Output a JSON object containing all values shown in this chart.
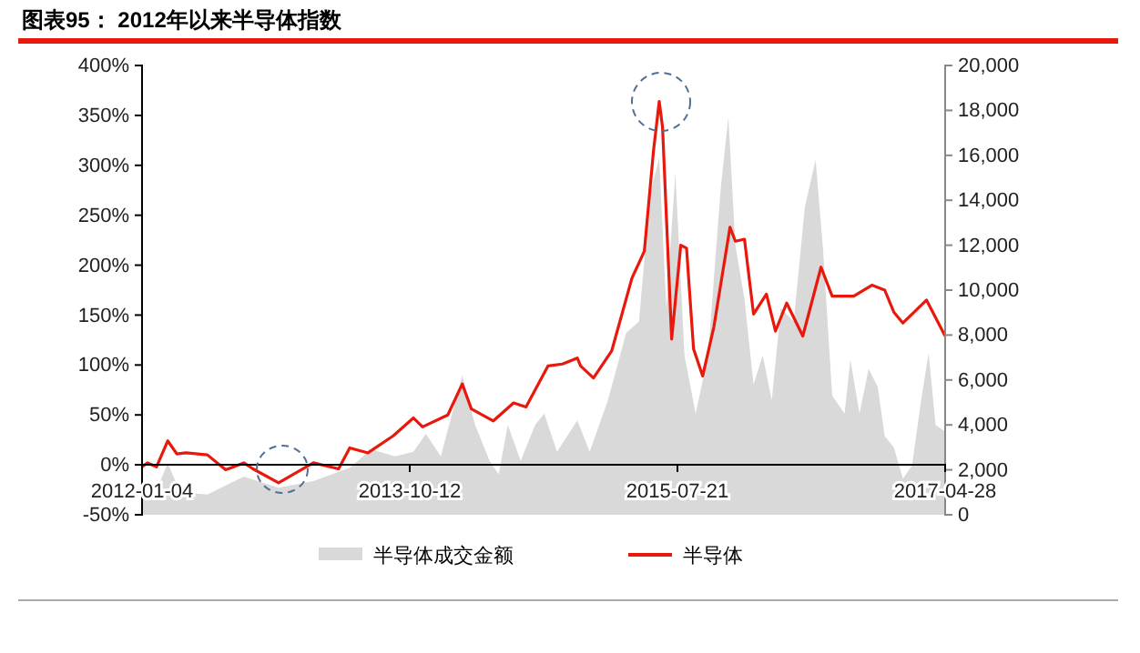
{
  "chart_data": {
    "type": "line",
    "title": "图表95：  2012年以来半导体指数",
    "xlim": [
      "2012-01-04",
      "2017-04-28"
    ],
    "xticks": [
      "2012-01-04",
      "2013-10-12",
      "2015-07-21",
      "2017-04-28"
    ],
    "ylim": [
      -50,
      400
    ],
    "yticks": [
      {
        "value": -50,
        "label": "-50%"
      },
      {
        "value": 0,
        "label": "0%"
      },
      {
        "value": 50,
        "label": "50%"
      },
      {
        "value": 100,
        "label": "100%"
      },
      {
        "value": 150,
        "label": "150%"
      },
      {
        "value": 200,
        "label": "200%"
      },
      {
        "value": 250,
        "label": "250%"
      },
      {
        "value": 300,
        "label": "300%"
      },
      {
        "value": 350,
        "label": "350%"
      },
      {
        "value": 400,
        "label": "400%"
      }
    ],
    "y2lim": [
      0,
      20000
    ],
    "y2ticks": [
      0,
      {
        "value": 2000,
        "label": "2,000"
      },
      {
        "value": 4000,
        "label": "4,000"
      },
      {
        "value": 6000,
        "label": "6,000"
      },
      {
        "value": 8000,
        "label": "8,000"
      },
      {
        "value": 10000,
        "label": "10,000"
      },
      {
        "value": 12000,
        "label": "12,000"
      },
      {
        "value": 14000,
        "label": "14,000"
      },
      {
        "value": 16000,
        "label": "16,000"
      },
      {
        "value": 18000,
        "label": "18,000"
      },
      {
        "value": 20000,
        "label": "20,000"
      }
    ],
    "legend": "bottom",
    "grid": false,
    "marker": "none",
    "series": [
      {
        "name": "半导体成交金额",
        "type": "area",
        "axis": "y2",
        "color": "#d9d9d9",
        "x": [
          "2012-01-04",
          "2012-02-04",
          "2012-03-06",
          "2012-04-05",
          "2012-06-10",
          "2012-09-06",
          "2012-11-29",
          "2013-02-21",
          "2013-05-20",
          "2013-07-11",
          "2013-09-07",
          "2013-10-21",
          "2013-11-20",
          "2013-12-26",
          "2014-02-16",
          "2014-03-19",
          "2014-04-23",
          "2014-05-15",
          "2014-06-06",
          "2014-07-07",
          "2014-08-11",
          "2014-09-02",
          "2014-10-03",
          "2014-11-21",
          "2014-12-21",
          "2015-02-03",
          "2015-03-19",
          "2015-04-19",
          "2015-05-16",
          "2015-06-07",
          "2015-06-24",
          "2015-07-16",
          "2015-08-07",
          "2015-09-03",
          "2015-10-03",
          "2015-11-03",
          "2015-11-21",
          "2015-12-08",
          "2015-12-30",
          "2016-01-21",
          "2016-02-12",
          "2016-03-05",
          "2016-03-27",
          "2016-04-27",
          "2016-05-24",
          "2016-06-19",
          "2016-07-07",
          "2016-07-29",
          "2016-08-28",
          "2016-09-11",
          "2016-10-03",
          "2016-10-25",
          "2016-11-16",
          "2016-12-03",
          "2016-12-25",
          "2017-01-16",
          "2017-02-07",
          "2017-03-01",
          "2017-03-19",
          "2017-04-05",
          "2017-04-28"
        ],
        "values": [
          800,
          900,
          2300,
          1000,
          900,
          1700,
          1200,
          1500,
          2100,
          2900,
          2600,
          2800,
          3600,
          2600,
          6200,
          4000,
          2400,
          1800,
          4000,
          2400,
          4000,
          4500,
          2800,
          4200,
          2800,
          5100,
          8100,
          8600,
          14300,
          15900,
          9200,
          15200,
          7100,
          4500,
          7100,
          14600,
          17700,
          12000,
          9600,
          5800,
          7100,
          5100,
          9200,
          8600,
          13700,
          15800,
          11800,
          5300,
          4500,
          6900,
          4500,
          6500,
          5700,
          3500,
          3000,
          1600,
          2200,
          5100,
          7200,
          4000,
          3700
        ]
      },
      {
        "name": "半导体",
        "color": "#e8180c",
        "line_style": "solid",
        "x": [
          "2012-01-04",
          "2012-01-17",
          "2012-02-08",
          "2012-03-06",
          "2012-03-28",
          "2012-04-19",
          "2012-06-10",
          "2012-07-24",
          "2012-09-06",
          "2012-09-28",
          "2012-11-29",
          "2013-02-21",
          "2013-04-23",
          "2013-05-20",
          "2013-07-03",
          "2013-09-02",
          "2013-10-21",
          "2013-11-12",
          "2014-01-12",
          "2014-02-16",
          "2014-03-10",
          "2014-05-02",
          "2014-06-20",
          "2014-07-20",
          "2014-09-11",
          "2014-10-16",
          "2014-11-21",
          "2014-11-29",
          "2014-12-30",
          "2015-02-12",
          "2015-04-02",
          "2015-05-02",
          "2015-05-24",
          "2015-06-07",
          "2015-06-15",
          "2015-07-07",
          "2015-07-29",
          "2015-08-12",
          "2015-08-29",
          "2015-09-20",
          "2015-10-17",
          "2015-11-25",
          "2015-12-08",
          "2015-12-30",
          "2016-01-21",
          "2016-02-21",
          "2016-03-14",
          "2016-04-10",
          "2016-05-19",
          "2016-07-02",
          "2016-07-29",
          "2016-09-19",
          "2016-11-02",
          "2016-12-03",
          "2016-12-25",
          "2017-01-16",
          "2017-03-14",
          "2017-04-28"
        ],
        "values": [
          -2,
          2,
          -2,
          24,
          11,
          12,
          10,
          -5,
          2,
          -4,
          -18,
          2,
          -4,
          17,
          12,
          29,
          47,
          38,
          50,
          81,
          56,
          44,
          62,
          58,
          99,
          101,
          107,
          99,
          87,
          114,
          187,
          214,
          314,
          364,
          338,
          126,
          220,
          217,
          116,
          89,
          138,
          238,
          224,
          226,
          151,
          171,
          134,
          162,
          129,
          198,
          169,
          169,
          180,
          175,
          153,
          142,
          165,
          129
        ]
      }
    ]
  }
}
